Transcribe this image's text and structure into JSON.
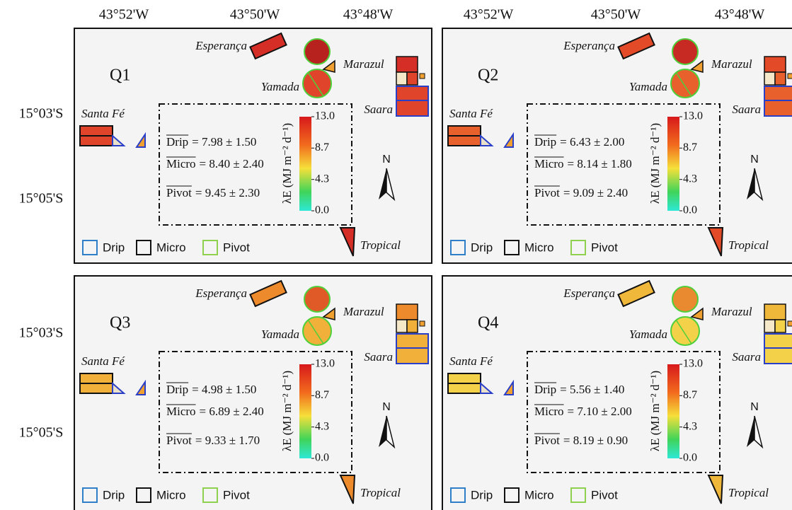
{
  "longitude_labels": [
    "43°52'W",
    "43°50'W",
    "43°48'W"
  ],
  "latitude_labels": [
    "15°03'S",
    "15°05'S"
  ],
  "farms": {
    "esperanca": "Esperança",
    "marazul": "Marazul",
    "yamada": "Yamada",
    "saara": "Saara",
    "santa_fe": "Santa Fé",
    "tropical": "Tropical"
  },
  "legend": [
    "Drip",
    "Micro",
    "Pivot"
  ],
  "colorbar": {
    "label": "λE (MJ m⁻² d⁻¹)",
    "ticks": [
      "13.0",
      "8.7",
      "4.3",
      "0.0"
    ]
  },
  "north": "N",
  "panels": [
    {
      "title": "Q1",
      "stats": [
        {
          "name": "Drip",
          "value": "= 7.98 ± 1.50"
        },
        {
          "name": "Micro",
          "value": "= 8.40 ± 2.40"
        },
        {
          "name": "Pivot",
          "value": "= 9.45 ± 2.30"
        }
      ]
    },
    {
      "title": "Q2",
      "stats": [
        {
          "name": "Drip",
          "value": "= 6.43 ± 2.00"
        },
        {
          "name": "Micro",
          "value": "= 8.14 ± 1.80"
        },
        {
          "name": "Pivot",
          "value": "= 9.09 ± 2.40"
        }
      ]
    },
    {
      "title": "Q3",
      "stats": [
        {
          "name": "Drip",
          "value": "= 4.98 ± 1.50"
        },
        {
          "name": "Micro",
          "value": "= 6.89 ± 2.40"
        },
        {
          "name": "Pivot",
          "value": "= 9.33 ± 1.70"
        }
      ]
    },
    {
      "title": "Q4",
      "stats": [
        {
          "name": "Drip",
          "value": "= 5.56 ± 1.40"
        },
        {
          "name": "Micro",
          "value": "= 7.10 ± 2.00"
        },
        {
          "name": "Pivot",
          "value": "= 8.19 ± 0.90"
        }
      ]
    }
  ]
}
